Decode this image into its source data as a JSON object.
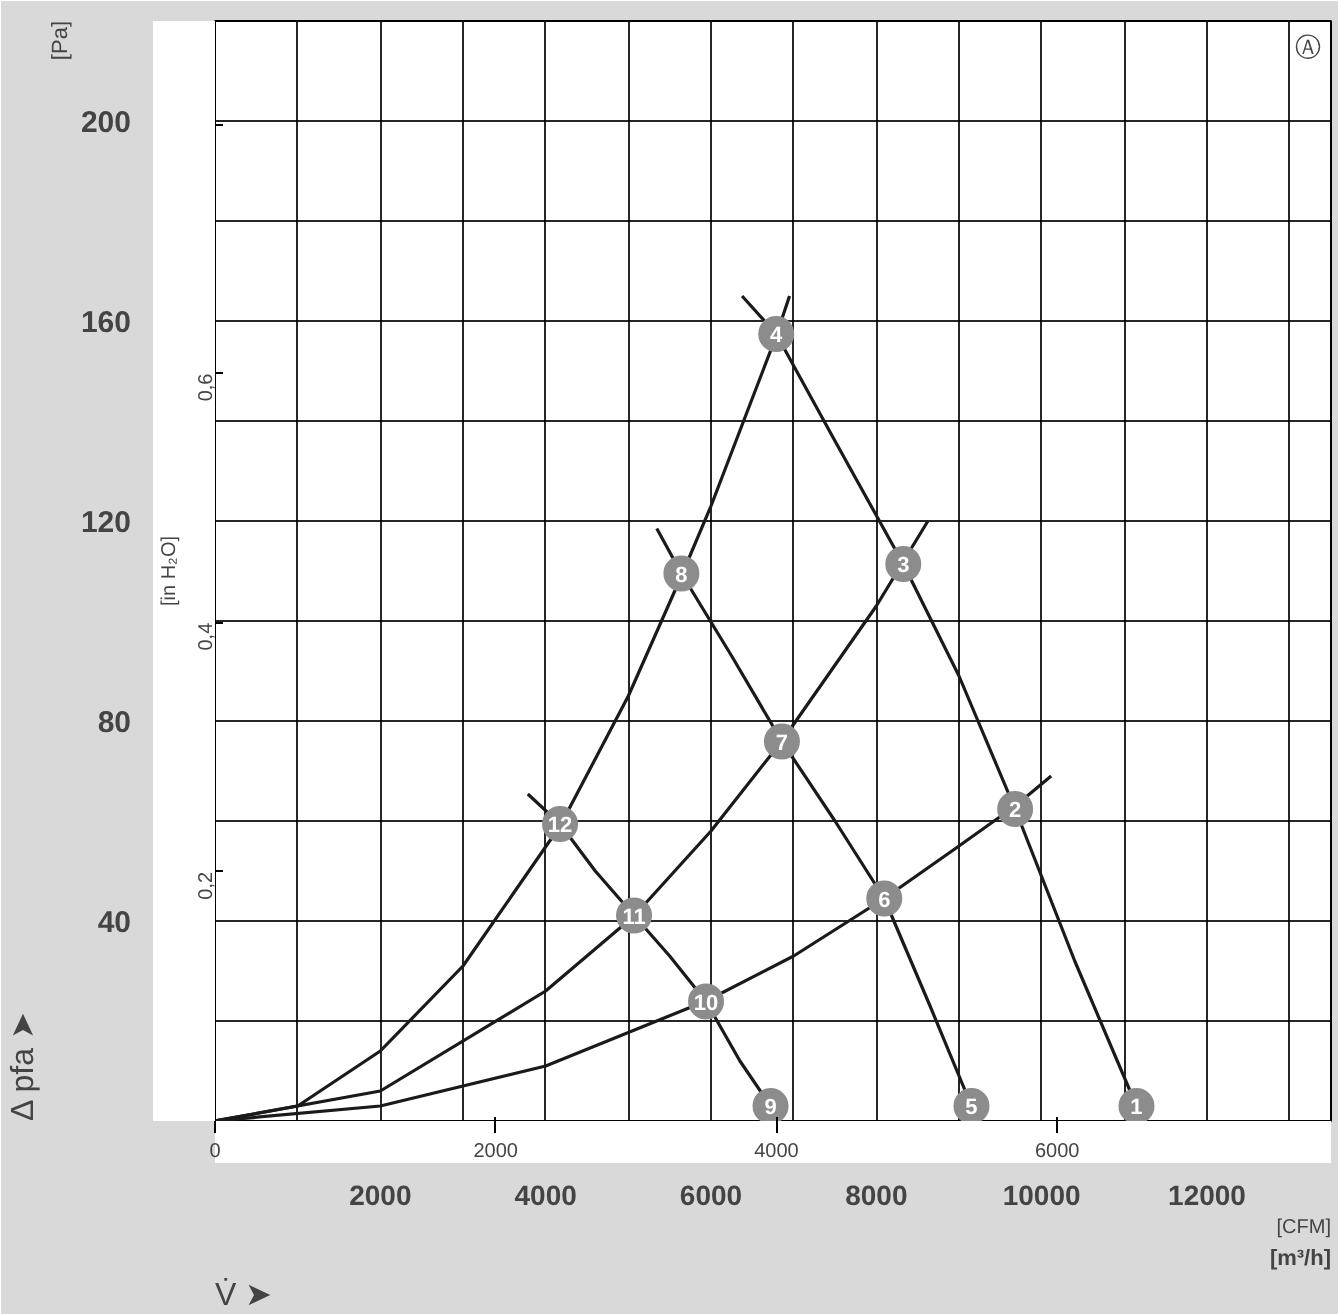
{
  "chart_data": {
    "type": "line",
    "ylabel": "[Pa]",
    "y2label": "[in H₂O]",
    "xlabel": "[m³/h]",
    "x2label": "[CFM]",
    "xlim": [
      0,
      13500
    ],
    "xticks": [
      {
        "value": 1000,
        "label": null
      },
      2000,
      {
        "value": 3000,
        "label": null
      },
      4000,
      {
        "value": 5000,
        "label": null
      },
      6000,
      {
        "value": 7000,
        "label": null
      },
      8000,
      {
        "value": 9000,
        "label": null
      },
      10000,
      {
        "value": 11000,
        "label": null
      },
      12000,
      {
        "value": 13000,
        "label": null
      }
    ],
    "x2lim": [
      0,
      7950
    ],
    "x2ticks": [
      0,
      2000,
      4000,
      6000
    ],
    "ylim": [
      0,
      220
    ],
    "yticks": [
      {
        "value": 20,
        "label": null
      },
      40,
      {
        "value": 60,
        "label": null
      },
      80,
      {
        "value": 100,
        "label": null
      },
      120,
      {
        "value": 140,
        "label": null
      },
      160,
      {
        "value": 180,
        "label": null
      },
      200
    ],
    "y2lim": [
      0,
      0.883
    ],
    "y2ticks": [
      {
        "value": 0.2,
        "label": "0,2"
      },
      {
        "value": 0.4,
        "label": "0,4"
      },
      {
        "value": 0.6,
        "label": "0,6"
      },
      {
        "value": 0.8,
        "label": null
      }
    ],
    "grid": true,
    "series": [
      {
        "color": "#1a1a1a",
        "x": [
          6376,
          6789,
          7500,
          8326,
          9000,
          9679,
          10400,
          11147
        ],
        "values": [
          165,
          157.4,
          136,
          111.4,
          89,
          62.4,
          32,
          3
        ]
      },
      {
        "color": "#1a1a1a",
        "x": [
          5344,
          5642,
          6250,
          6858,
          7500,
          8096,
          8650,
          9151
        ],
        "values": [
          118.5,
          109.5,
          93,
          75.9,
          60,
          44.5,
          23,
          3
        ]
      },
      {
        "color": "#1a1a1a",
        "x": [
          3784,
          4174,
          4600,
          5069,
          5500,
          5940,
          6350,
          6720
        ],
        "values": [
          65.4,
          59.4,
          50,
          41.1,
          33,
          23.9,
          12,
          3
        ]
      },
      {
        "color": "#1a1a1a",
        "x": [
          0,
          1000,
          2000,
          3000,
          4174,
          5000,
          5642,
          6000,
          6789,
          6950
        ],
        "values": [
          0,
          3,
          14,
          31,
          59,
          85,
          109,
          123,
          157,
          165
        ]
      },
      {
        "color": "#1a1a1a",
        "x": [
          0,
          2000,
          4000,
          5069,
          6000,
          6858,
          8000,
          8624
        ],
        "values": [
          0,
          6,
          26,
          41,
          58,
          76,
          103,
          120
        ]
      },
      {
        "color": "#1a1a1a",
        "x": [
          0,
          2000,
          4000,
          5940,
          7000,
          8096,
          9000,
          9679,
          10115
        ],
        "values": [
          0,
          3,
          11,
          24,
          33,
          44.5,
          55,
          63,
          69
        ]
      },
      {
        "type": "scatter",
        "marker": "circle",
        "color": "#8c8c8c",
        "x": [
          11147,
          9679,
          8326,
          6789,
          9151,
          8096,
          6858,
          5642,
          6720,
          5940,
          5069,
          4174
        ],
        "values": [
          3,
          62.4,
          111.4,
          157.4,
          3,
          44.5,
          75.9,
          109.5,
          3,
          23.9,
          41.1,
          59.4
        ]
      }
    ],
    "annotations": [
      "Δ pfa ➤",
      "V̇ ➤",
      "Ⓐ",
      {
        "text": "1",
        "x": 11147,
        "y": 3
      },
      {
        "text": "2",
        "x": 9679,
        "y": 62.4
      },
      {
        "text": "3",
        "x": 8326,
        "y": 111.4
      },
      {
        "text": "4",
        "x": 6789,
        "y": 157.4
      },
      {
        "text": "5",
        "x": 9151,
        "y": 3
      },
      {
        "text": "6",
        "x": 8096,
        "y": 44.5
      },
      {
        "text": "7",
        "x": 6858,
        "y": 75.9
      },
      {
        "text": "8",
        "x": 5642,
        "y": 109.5
      },
      {
        "text": "9",
        "x": 6720,
        "y": 3
      },
      {
        "text": "10",
        "x": 5940,
        "y": 23.9
      },
      {
        "text": "11",
        "x": 5069,
        "y": 41.1
      },
      {
        "text": "12",
        "x": 4174,
        "y": 59.4
      }
    ]
  }
}
